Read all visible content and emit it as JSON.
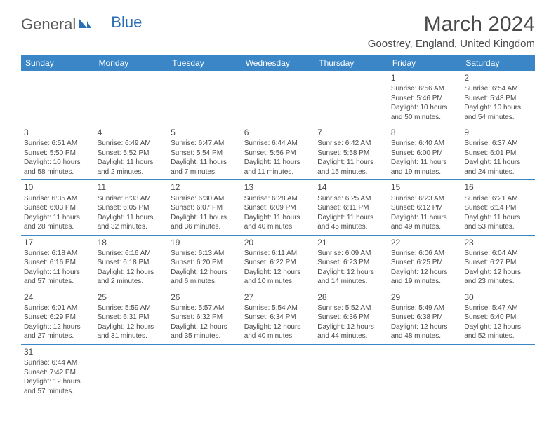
{
  "logo": {
    "general": "General",
    "blue": "Blue"
  },
  "title": "March 2024",
  "location": "Goostrey, England, United Kingdom",
  "colors": {
    "header_bg": "#3b86c6",
    "header_text": "#ffffff",
    "text": "#4a4a4a",
    "rule": "#3b86c6",
    "logo_blue": "#2a6fb5"
  },
  "dayHeaders": [
    "Sunday",
    "Monday",
    "Tuesday",
    "Wednesday",
    "Thursday",
    "Friday",
    "Saturday"
  ],
  "weeks": [
    [
      null,
      null,
      null,
      null,
      null,
      {
        "n": "1",
        "sr": "6:56 AM",
        "ss": "5:46 PM",
        "dl": "10 hours and 50 minutes."
      },
      {
        "n": "2",
        "sr": "6:54 AM",
        "ss": "5:48 PM",
        "dl": "10 hours and 54 minutes."
      }
    ],
    [
      {
        "n": "3",
        "sr": "6:51 AM",
        "ss": "5:50 PM",
        "dl": "10 hours and 58 minutes."
      },
      {
        "n": "4",
        "sr": "6:49 AM",
        "ss": "5:52 PM",
        "dl": "11 hours and 2 minutes."
      },
      {
        "n": "5",
        "sr": "6:47 AM",
        "ss": "5:54 PM",
        "dl": "11 hours and 7 minutes."
      },
      {
        "n": "6",
        "sr": "6:44 AM",
        "ss": "5:56 PM",
        "dl": "11 hours and 11 minutes."
      },
      {
        "n": "7",
        "sr": "6:42 AM",
        "ss": "5:58 PM",
        "dl": "11 hours and 15 minutes."
      },
      {
        "n": "8",
        "sr": "6:40 AM",
        "ss": "6:00 PM",
        "dl": "11 hours and 19 minutes."
      },
      {
        "n": "9",
        "sr": "6:37 AM",
        "ss": "6:01 PM",
        "dl": "11 hours and 24 minutes."
      }
    ],
    [
      {
        "n": "10",
        "sr": "6:35 AM",
        "ss": "6:03 PM",
        "dl": "11 hours and 28 minutes."
      },
      {
        "n": "11",
        "sr": "6:33 AM",
        "ss": "6:05 PM",
        "dl": "11 hours and 32 minutes."
      },
      {
        "n": "12",
        "sr": "6:30 AM",
        "ss": "6:07 PM",
        "dl": "11 hours and 36 minutes."
      },
      {
        "n": "13",
        "sr": "6:28 AM",
        "ss": "6:09 PM",
        "dl": "11 hours and 40 minutes."
      },
      {
        "n": "14",
        "sr": "6:25 AM",
        "ss": "6:11 PM",
        "dl": "11 hours and 45 minutes."
      },
      {
        "n": "15",
        "sr": "6:23 AM",
        "ss": "6:12 PM",
        "dl": "11 hours and 49 minutes."
      },
      {
        "n": "16",
        "sr": "6:21 AM",
        "ss": "6:14 PM",
        "dl": "11 hours and 53 minutes."
      }
    ],
    [
      {
        "n": "17",
        "sr": "6:18 AM",
        "ss": "6:16 PM",
        "dl": "11 hours and 57 minutes."
      },
      {
        "n": "18",
        "sr": "6:16 AM",
        "ss": "6:18 PM",
        "dl": "12 hours and 2 minutes."
      },
      {
        "n": "19",
        "sr": "6:13 AM",
        "ss": "6:20 PM",
        "dl": "12 hours and 6 minutes."
      },
      {
        "n": "20",
        "sr": "6:11 AM",
        "ss": "6:22 PM",
        "dl": "12 hours and 10 minutes."
      },
      {
        "n": "21",
        "sr": "6:09 AM",
        "ss": "6:23 PM",
        "dl": "12 hours and 14 minutes."
      },
      {
        "n": "22",
        "sr": "6:06 AM",
        "ss": "6:25 PM",
        "dl": "12 hours and 19 minutes."
      },
      {
        "n": "23",
        "sr": "6:04 AM",
        "ss": "6:27 PM",
        "dl": "12 hours and 23 minutes."
      }
    ],
    [
      {
        "n": "24",
        "sr": "6:01 AM",
        "ss": "6:29 PM",
        "dl": "12 hours and 27 minutes."
      },
      {
        "n": "25",
        "sr": "5:59 AM",
        "ss": "6:31 PM",
        "dl": "12 hours and 31 minutes."
      },
      {
        "n": "26",
        "sr": "5:57 AM",
        "ss": "6:32 PM",
        "dl": "12 hours and 35 minutes."
      },
      {
        "n": "27",
        "sr": "5:54 AM",
        "ss": "6:34 PM",
        "dl": "12 hours and 40 minutes."
      },
      {
        "n": "28",
        "sr": "5:52 AM",
        "ss": "6:36 PM",
        "dl": "12 hours and 44 minutes."
      },
      {
        "n": "29",
        "sr": "5:49 AM",
        "ss": "6:38 PM",
        "dl": "12 hours and 48 minutes."
      },
      {
        "n": "30",
        "sr": "5:47 AM",
        "ss": "6:40 PM",
        "dl": "12 hours and 52 minutes."
      }
    ],
    [
      {
        "n": "31",
        "sr": "6:44 AM",
        "ss": "7:42 PM",
        "dl": "12 hours and 57 minutes."
      },
      null,
      null,
      null,
      null,
      null,
      null
    ]
  ]
}
